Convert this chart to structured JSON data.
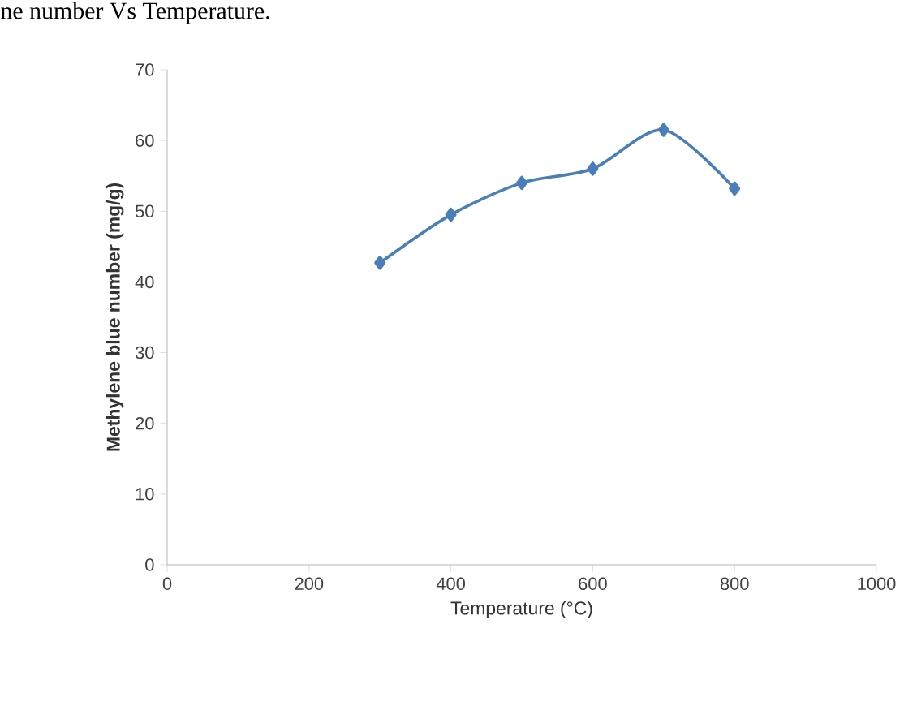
{
  "chart_data": {
    "type": "line",
    "title": "ne number Vs Temperature.",
    "xlabel": "Temperature (°C)",
    "ylabel": "Methylene blue number (mg/g)",
    "x": [
      300,
      400,
      500,
      600,
      700,
      800
    ],
    "series": [
      {
        "color": "#4a7ebb",
        "values": [
          42.7,
          49.5,
          54.0,
          56.0,
          61.5,
          53.2
        ]
      }
    ],
    "xlim": [
      0,
      1000
    ],
    "xticks": [
      0,
      200,
      400,
      600,
      800,
      1000
    ],
    "ylim": [
      0,
      70
    ],
    "yticks": [
      0,
      10,
      20,
      30,
      40,
      50,
      60,
      70
    ],
    "marker": "diamond",
    "line_style": "solid",
    "grid": false
  }
}
